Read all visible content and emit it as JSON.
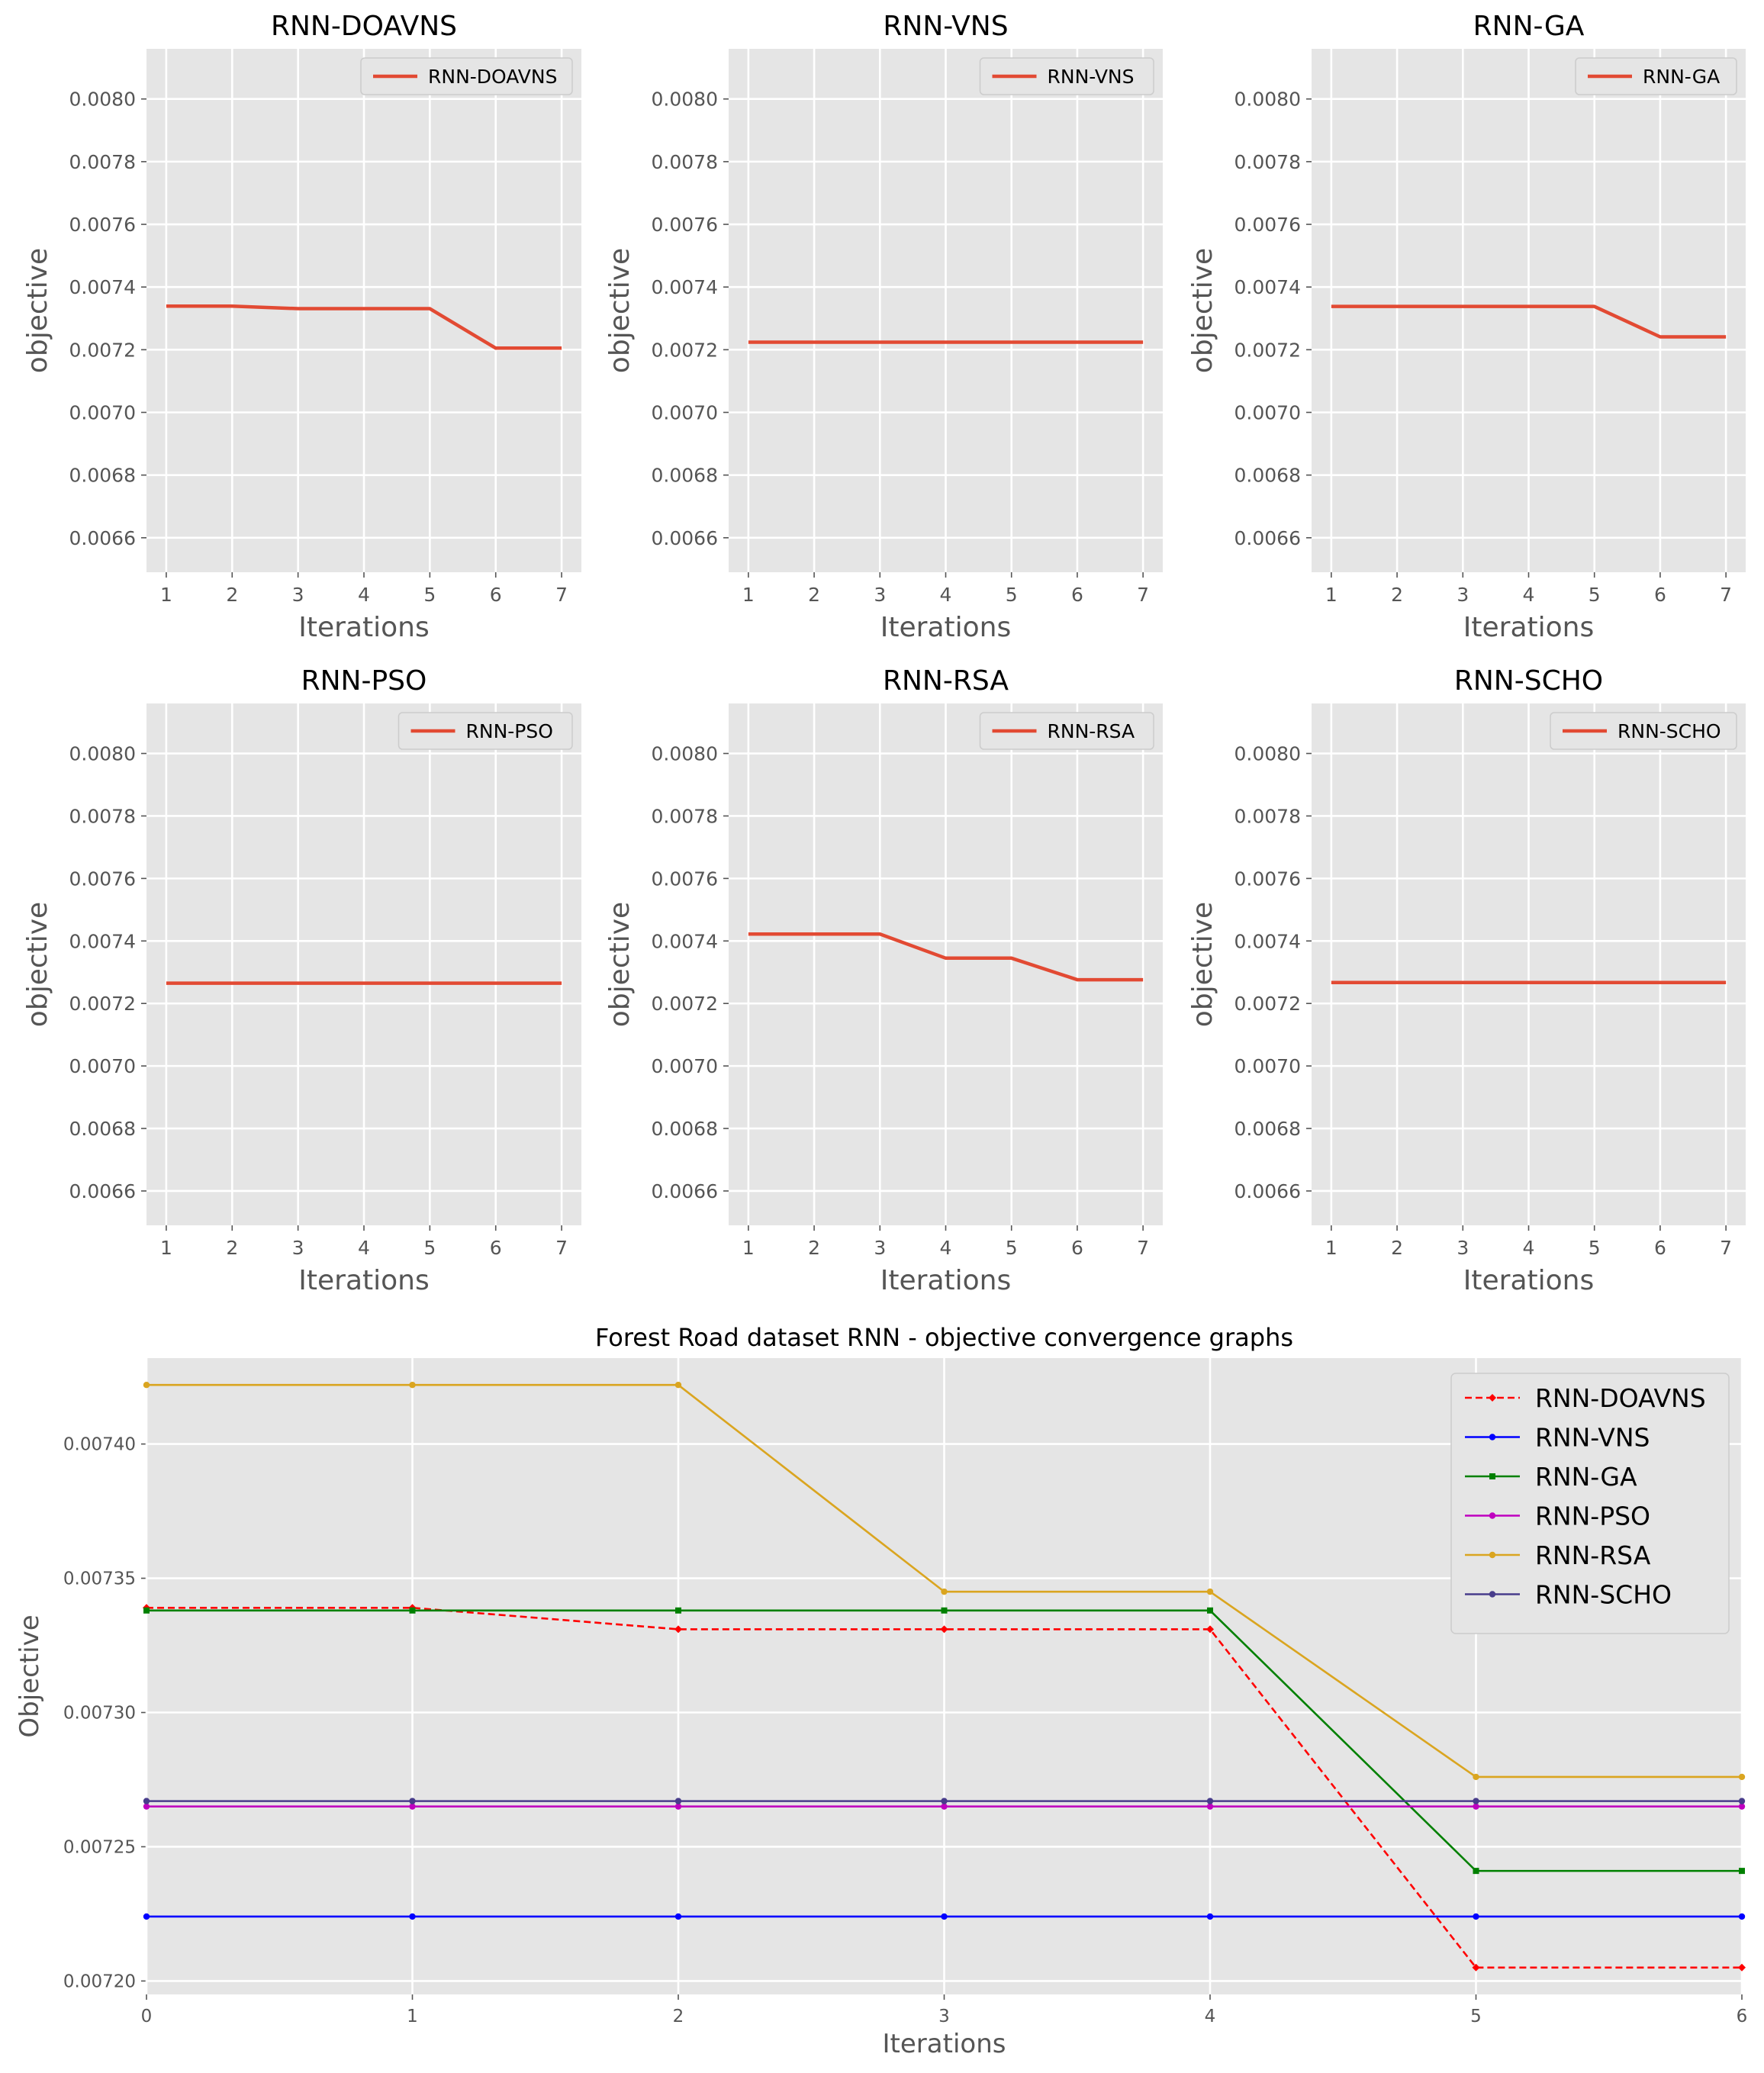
{
  "chart_data": [
    {
      "type": "line",
      "title": "RNN-DOAVNS",
      "xlabel": "Iterations",
      "ylabel": "objective",
      "x": [
        1,
        2,
        3,
        4,
        5,
        6,
        7
      ],
      "xticks": [
        "1",
        "2",
        "3",
        "4",
        "5",
        "6",
        "7"
      ],
      "yticks": [
        "0.0066",
        "0.0068",
        "0.0070",
        "0.0072",
        "0.0074",
        "0.0076",
        "0.0078",
        "0.0080"
      ],
      "ylim": [
        0.00649,
        0.00816
      ],
      "xlim": [
        0.7,
        7.3
      ],
      "grid": true,
      "legend": "top-right",
      "series": [
        {
          "name": "RNN-DOAVNS",
          "values": [
            0.007339,
            0.007339,
            0.007331,
            0.007331,
            0.007331,
            0.007205,
            0.007205
          ]
        }
      ]
    },
    {
      "type": "line",
      "title": "RNN-VNS",
      "xlabel": "Iterations",
      "ylabel": "objective",
      "x": [
        1,
        2,
        3,
        4,
        5,
        6,
        7
      ],
      "xticks": [
        "1",
        "2",
        "3",
        "4",
        "5",
        "6",
        "7"
      ],
      "yticks": [
        "0.0066",
        "0.0068",
        "0.0070",
        "0.0072",
        "0.0074",
        "0.0076",
        "0.0078",
        "0.0080"
      ],
      "ylim": [
        0.00649,
        0.00816
      ],
      "xlim": [
        0.7,
        7.3
      ],
      "grid": true,
      "legend": "top-right",
      "series": [
        {
          "name": "RNN-VNS",
          "values": [
            0.007224,
            0.007224,
            0.007224,
            0.007224,
            0.007224,
            0.007224,
            0.007224
          ]
        }
      ]
    },
    {
      "type": "line",
      "title": "RNN-GA",
      "xlabel": "Iterations",
      "ylabel": "objective",
      "x": [
        1,
        2,
        3,
        4,
        5,
        6,
        7
      ],
      "xticks": [
        "1",
        "2",
        "3",
        "4",
        "5",
        "6",
        "7"
      ],
      "yticks": [
        "0.0066",
        "0.0068",
        "0.0070",
        "0.0072",
        "0.0074",
        "0.0076",
        "0.0078",
        "0.0080"
      ],
      "ylim": [
        0.00649,
        0.00816
      ],
      "xlim": [
        0.7,
        7.3
      ],
      "grid": true,
      "legend": "top-right",
      "series": [
        {
          "name": "RNN-GA",
          "values": [
            0.007338,
            0.007338,
            0.007338,
            0.007338,
            0.007338,
            0.007241,
            0.007241
          ]
        }
      ]
    },
    {
      "type": "line",
      "title": "RNN-PSO",
      "xlabel": "Iterations",
      "ylabel": "objective",
      "x": [
        1,
        2,
        3,
        4,
        5,
        6,
        7
      ],
      "xticks": [
        "1",
        "2",
        "3",
        "4",
        "5",
        "6",
        "7"
      ],
      "yticks": [
        "0.0066",
        "0.0068",
        "0.0070",
        "0.0072",
        "0.0074",
        "0.0076",
        "0.0078",
        "0.0080"
      ],
      "ylim": [
        0.00649,
        0.00816
      ],
      "xlim": [
        0.7,
        7.3
      ],
      "grid": true,
      "legend": "top-right",
      "series": [
        {
          "name": "RNN-PSO",
          "values": [
            0.007265,
            0.007265,
            0.007265,
            0.007265,
            0.007265,
            0.007265,
            0.007265
          ]
        }
      ]
    },
    {
      "type": "line",
      "title": "RNN-RSA",
      "xlabel": "Iterations",
      "ylabel": "objective",
      "x": [
        1,
        2,
        3,
        4,
        5,
        6,
        7
      ],
      "xticks": [
        "1",
        "2",
        "3",
        "4",
        "5",
        "6",
        "7"
      ],
      "yticks": [
        "0.0066",
        "0.0068",
        "0.0070",
        "0.0072",
        "0.0074",
        "0.0076",
        "0.0078",
        "0.0080"
      ],
      "ylim": [
        0.00649,
        0.00816
      ],
      "xlim": [
        0.7,
        7.3
      ],
      "grid": true,
      "legend": "top-right",
      "series": [
        {
          "name": "RNN-RSA",
          "values": [
            0.007422,
            0.007422,
            0.007422,
            0.007345,
            0.007345,
            0.007276,
            0.007276
          ]
        }
      ]
    },
    {
      "type": "line",
      "title": "RNN-SCHO",
      "xlabel": "Iterations",
      "ylabel": "objective",
      "x": [
        1,
        2,
        3,
        4,
        5,
        6,
        7
      ],
      "xticks": [
        "1",
        "2",
        "3",
        "4",
        "5",
        "6",
        "7"
      ],
      "yticks": [
        "0.0066",
        "0.0068",
        "0.0070",
        "0.0072",
        "0.0074",
        "0.0076",
        "0.0078",
        "0.0080"
      ],
      "ylim": [
        0.00649,
        0.00816
      ],
      "xlim": [
        0.7,
        7.3
      ],
      "grid": true,
      "legend": "top-right",
      "series": [
        {
          "name": "RNN-SCHO",
          "values": [
            0.007267,
            0.007267,
            0.007267,
            0.007267,
            0.007267,
            0.007267,
            0.007267
          ]
        }
      ]
    },
    {
      "type": "line",
      "title": "Forest Road dataset RNN -  objective convergence graphs",
      "xlabel": "Iterations",
      "ylabel": "Objective",
      "x": [
        0,
        1,
        2,
        3,
        4,
        5,
        6
      ],
      "xticks": [
        "0",
        "1",
        "2",
        "3",
        "4",
        "5",
        "6"
      ],
      "yticks": [
        "0.00720",
        "0.00725",
        "0.00730",
        "0.00735",
        "0.00740"
      ],
      "xlim": [
        0,
        6
      ],
      "ylim": [
        0.007195,
        0.007432
      ],
      "grid": true,
      "legend": "top-right",
      "series": [
        {
          "name": "RNN-DOAVNS",
          "color": "#ff0000",
          "dash": true,
          "marker": "diamond",
          "values": [
            0.007339,
            0.007339,
            0.007331,
            0.007331,
            0.007331,
            0.007205,
            0.007205
          ]
        },
        {
          "name": "RNN-VNS",
          "color": "#0000ff",
          "dash": false,
          "marker": "circle",
          "values": [
            0.007224,
            0.007224,
            0.007224,
            0.007224,
            0.007224,
            0.007224,
            0.007224
          ]
        },
        {
          "name": "RNN-GA",
          "color": "#008000",
          "dash": false,
          "marker": "square",
          "values": [
            0.007338,
            0.007338,
            0.007338,
            0.007338,
            0.007338,
            0.007241,
            0.007241
          ]
        },
        {
          "name": "RNN-PSO",
          "color": "#bf00bf",
          "dash": false,
          "marker": "circle",
          "values": [
            0.007265,
            0.007265,
            0.007265,
            0.007265,
            0.007265,
            0.007265,
            0.007265
          ]
        },
        {
          "name": "RNN-RSA",
          "color": "#daa520",
          "dash": false,
          "marker": "circle",
          "values": [
            0.007422,
            0.007422,
            0.007422,
            0.007345,
            0.007345,
            0.007276,
            0.007276
          ]
        },
        {
          "name": "RNN-SCHO",
          "color": "#483d8b",
          "dash": false,
          "marker": "circle",
          "values": [
            0.007267,
            0.007267,
            0.007267,
            0.007267,
            0.007267,
            0.007267,
            0.007267
          ]
        }
      ]
    }
  ],
  "colors": {
    "panel_background": "#e5e5e5",
    "grid": "#ffffff",
    "subplot_line": "#e24a33",
    "tick_text": "#555555",
    "axis_label_text": "#555555"
  }
}
